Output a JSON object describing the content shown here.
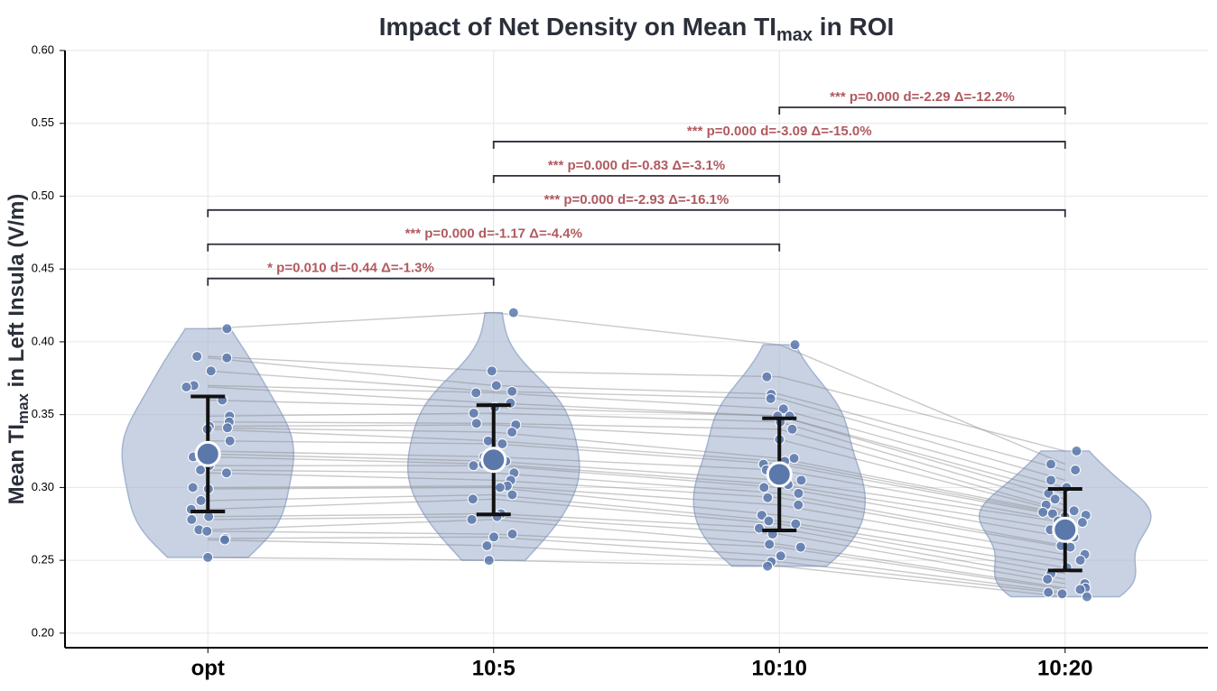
{
  "chart_data": {
    "type": "violin-paired",
    "title_parts": [
      "Impact of Net Density on Mean TI",
      "max",
      " in ROI"
    ],
    "y_label_parts": [
      "Mean TI",
      "max",
      " in Left Insula (V/m)"
    ],
    "categories": [
      "opt",
      "10:5",
      "10:10",
      "10:20"
    ],
    "color": "#5b78ab",
    "violin_color": "#a3b4d0",
    "grid": true,
    "ylim": [
      0.19,
      0.6
    ],
    "yticks": [
      {
        "value": 0.2,
        "label": "0.20"
      },
      0.25,
      {
        "value": 0.3,
        "label": "0.30"
      },
      0.35,
      {
        "value": 0.4,
        "label": "0.40"
      },
      0.45,
      {
        "value": 0.5,
        "label": "0.50"
      },
      0.55,
      {
        "value": 0.6,
        "label": "0.60"
      }
    ],
    "points": [
      [
        0.409,
        0.39,
        0.389,
        0.38,
        0.37,
        0.369,
        0.36,
        0.349,
        0.345,
        0.342,
        0.341,
        0.34,
        0.332,
        0.325,
        0.323,
        0.321,
        0.315,
        0.312,
        0.31,
        0.3,
        0.299,
        0.291,
        0.285,
        0.28,
        0.278,
        0.271,
        0.27,
        0.265,
        0.264,
        0.252
      ],
      [
        0.42,
        0.38,
        0.37,
        0.366,
        0.365,
        0.358,
        0.355,
        0.351,
        0.344,
        0.343,
        0.338,
        0.332,
        0.33,
        0.321,
        0.318,
        0.316,
        0.315,
        0.31,
        0.305,
        0.301,
        0.3,
        0.295,
        0.292,
        0.282,
        0.28,
        0.278,
        0.268,
        0.266,
        0.26,
        0.25
      ],
      [
        0.398,
        0.376,
        0.364,
        0.361,
        0.354,
        0.349,
        0.349,
        0.345,
        0.34,
        0.333,
        0.32,
        0.318,
        0.316,
        0.312,
        0.305,
        0.302,
        0.3,
        0.296,
        0.293,
        0.288,
        0.281,
        0.277,
        0.275,
        0.272,
        0.268,
        0.261,
        0.259,
        0.253,
        0.249,
        0.246
      ],
      [
        0.316,
        0.325,
        0.312,
        0.305,
        0.3,
        0.296,
        0.292,
        0.288,
        0.284,
        0.283,
        0.282,
        0.281,
        0.28,
        0.277,
        0.276,
        0.271,
        0.266,
        0.26,
        0.259,
        0.254,
        0.25,
        0.245,
        0.241,
        0.237,
        0.234,
        0.231,
        0.23,
        0.228,
        0.227,
        0.225
      ]
    ],
    "means": [
      0.323,
      0.319,
      0.309,
      0.271
    ],
    "sd": [
      0.0395,
      0.0375,
      0.0385,
      0.028
    ],
    "comparisons": [
      {
        "from": "opt",
        "to": "10:5",
        "label": "*  p=0.010  d=-0.44  Δ=-1.3%"
      },
      {
        "from": "opt",
        "to": "10:10",
        "label": "***  p=0.000  d=-1.17  Δ=-4.4%"
      },
      {
        "from": "opt",
        "to": "10:20",
        "label": "***  p=0.000  d=-2.93  Δ=-16.1%"
      },
      {
        "from": "10:5",
        "to": "10:10",
        "label": "***  p=0.000  d=-0.83  Δ=-3.1%"
      },
      {
        "from": "10:5",
        "to": "10:20",
        "label": "***  p=0.000  d=-3.09  Δ=-15.0%"
      },
      {
        "from": "10:10",
        "to": "10:20",
        "label": "***  p=0.000  d=-2.29  Δ=-12.2%"
      }
    ]
  }
}
